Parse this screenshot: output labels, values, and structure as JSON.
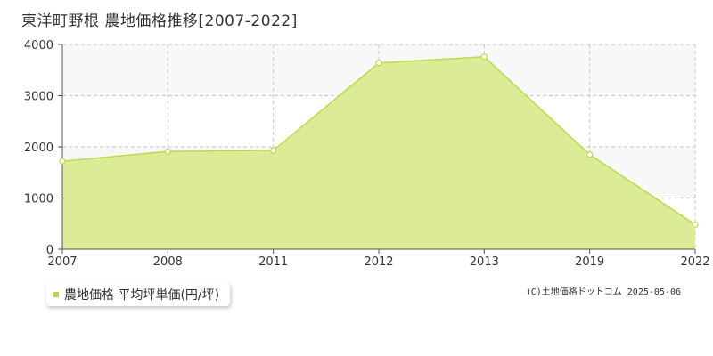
{
  "header": {
    "title": "東洋町野根  農地価格推移[2007-2022]"
  },
  "legend": {
    "label": "農地価格 平均坪単価(円/坪)"
  },
  "footer": {
    "copyright": "(C)土地価格ドットコム 2025-05-06"
  },
  "colors": {
    "area_fill": "#dcec96",
    "line": "#b9dc4c",
    "band": "#f8f8f8",
    "grid": "#c8c8c8"
  },
  "chart_data": {
    "type": "area",
    "title": "東洋町野根  農地価格推移[2007-2022]",
    "categories": [
      "2007",
      "2008",
      "2011",
      "2012",
      "2013",
      "2019",
      "2022"
    ],
    "series": [
      {
        "name": "農地価格 平均坪単価(円/坪)",
        "values": [
          1720,
          1910,
          1930,
          3640,
          3760,
          1850,
          480
        ]
      }
    ],
    "yticks": [
      0,
      1000,
      2000,
      3000,
      4000
    ],
    "ylim": [
      0,
      4000
    ],
    "grid": true
  }
}
